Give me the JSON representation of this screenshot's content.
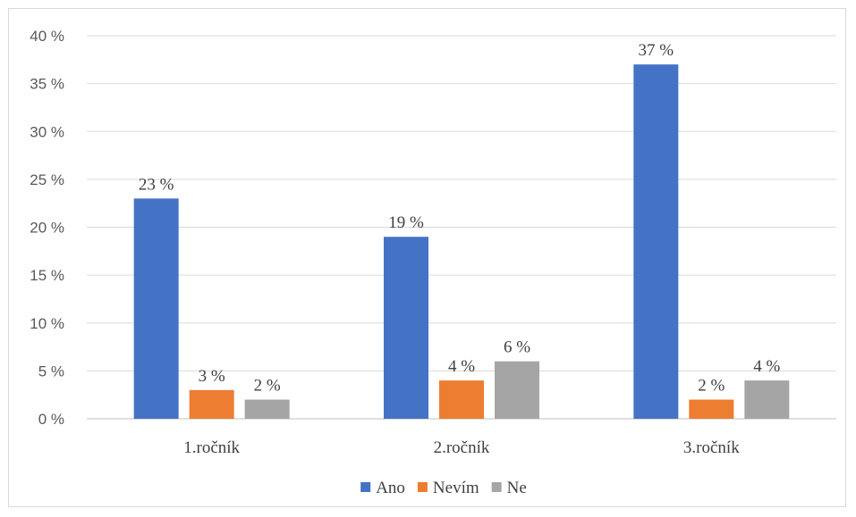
{
  "chart_data": {
    "type": "bar",
    "title": "",
    "xlabel": "",
    "ylabel": "",
    "categories": [
      "1.ročník",
      "2.ročník",
      "3.ročník"
    ],
    "series": [
      {
        "name": "Ano",
        "color": "#4472C4",
        "values": [
          23,
          19,
          37
        ],
        "labels": [
          "23 %",
          "19 %",
          "37 %"
        ]
      },
      {
        "name": "Nevím",
        "color": "#ED7D31",
        "values": [
          3,
          4,
          2
        ],
        "labels": [
          "3 %",
          "4 %",
          "2 %"
        ]
      },
      {
        "name": "Ne",
        "color": "#A5A5A5",
        "values": [
          2,
          6,
          4
        ],
        "labels": [
          "2 %",
          "6 %",
          "4 %"
        ]
      }
    ],
    "ylim": [
      0,
      40
    ],
    "yticks": [
      0,
      5,
      10,
      15,
      20,
      25,
      30,
      35,
      40
    ],
    "ytick_labels": [
      "0 %",
      "5 %",
      "10 %",
      "15 %",
      "20 %",
      "25 %",
      "30 %",
      "35 %",
      "40 %"
    ],
    "grid": true,
    "legend_position": "bottom"
  }
}
